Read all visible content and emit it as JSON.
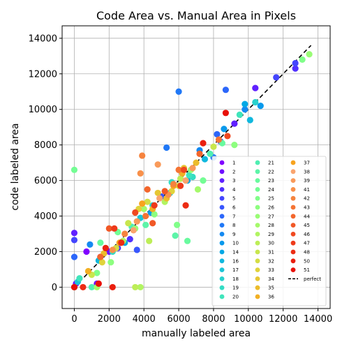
{
  "chart_data": {
    "type": "scatter",
    "title": "Code Area vs. Manual Area in Pixels",
    "xlabel": "manually labeled area",
    "ylabel": "code labeled area",
    "xlim": [
      -700,
      14700
    ],
    "ylim": [
      -1200,
      14700
    ],
    "xticks": [
      0,
      2000,
      4000,
      6000,
      8000,
      10000,
      12000,
      14000
    ],
    "yticks": [
      0,
      2000,
      4000,
      6000,
      8000,
      10000,
      12000,
      14000
    ],
    "grid": true,
    "legend_placement": "lower-right",
    "reference_line": {
      "name": "perfect",
      "x": [
        0,
        13600
      ],
      "y": [
        0,
        13600
      ],
      "style": "dashed",
      "color": "#000000"
    },
    "series": [
      {
        "name": "1",
        "color": "#8000ff",
        "points": [
          [
            0,
            0
          ],
          [
            700,
            2000
          ],
          [
            1500,
            1700
          ]
        ]
      },
      {
        "name": "2",
        "color": "#7010ff",
        "points": [
          [
            100,
            200
          ],
          [
            1300,
            200
          ],
          [
            2000,
            2000
          ]
        ]
      },
      {
        "name": "3",
        "color": "#6020ff",
        "points": [
          [
            0,
            3050
          ],
          [
            9200,
            9200
          ],
          [
            10400,
            11200
          ]
        ]
      },
      {
        "name": "4",
        "color": "#5030ff",
        "points": [
          [
            2500,
            2200
          ],
          [
            3200,
            2700
          ],
          [
            12700,
            12300
          ]
        ]
      },
      {
        "name": "5",
        "color": "#4445fe",
        "points": [
          [
            0,
            2650
          ],
          [
            12700,
            12600
          ],
          [
            11600,
            11800
          ]
        ]
      },
      {
        "name": "6",
        "color": "#3856fd",
        "points": [
          [
            3600,
            2100
          ],
          [
            5000,
            5100
          ],
          [
            8400,
            8200
          ]
        ]
      },
      {
        "name": "7",
        "color": "#2c67fa",
        "points": [
          [
            0,
            1700
          ],
          [
            8200,
            8600
          ],
          [
            8700,
            11100
          ]
        ]
      },
      {
        "name": "8",
        "color": "#2078f6",
        "points": [
          [
            6000,
            11000
          ],
          [
            5300,
            7850
          ],
          [
            8000,
            7300
          ]
        ]
      },
      {
        "name": "9",
        "color": "#1489f1",
        "points": [
          [
            900,
            2400
          ],
          [
            7200,
            7700
          ],
          [
            9800,
            10000
          ]
        ]
      },
      {
        "name": "10",
        "color": "#0899ec",
        "points": [
          [
            10700,
            10200
          ],
          [
            8600,
            8900
          ],
          [
            4400,
            4200
          ]
        ]
      },
      {
        "name": "14",
        "color": "#03a8e5",
        "points": [
          [
            9800,
            10300
          ],
          [
            2900,
            2500
          ],
          [
            6500,
            6000
          ]
        ]
      },
      {
        "name": "16",
        "color": "#10b8de",
        "points": [
          [
            10100,
            9400
          ],
          [
            1400,
            1500
          ],
          [
            7500,
            7200
          ]
        ]
      },
      {
        "name": "17",
        "color": "#1cc5d6",
        "points": [
          [
            200,
            300
          ],
          [
            3800,
            3900
          ],
          [
            5500,
            5300
          ]
        ]
      },
      {
        "name": "18",
        "color": "#28d1cd",
        "points": [
          [
            0,
            0
          ],
          [
            4500,
            4600
          ],
          [
            10400,
            10400
          ]
        ]
      },
      {
        "name": "19",
        "color": "#34dcc4",
        "points": [
          [
            5600,
            5900
          ],
          [
            2200,
            2000
          ],
          [
            6800,
            6200
          ]
        ]
      },
      {
        "name": "20",
        "color": "#40e5bb",
        "points": [
          [
            300,
            500
          ],
          [
            6600,
            6300
          ],
          [
            9500,
            9700
          ]
        ]
      },
      {
        "name": "21",
        "color": "#50eeb2",
        "points": [
          [
            1000,
            0
          ],
          [
            3300,
            3400
          ],
          [
            7800,
            7500
          ]
        ]
      },
      {
        "name": "22",
        "color": "#5cf4a8",
        "points": [
          [
            0,
            0
          ],
          [
            5800,
            2900
          ],
          [
            4100,
            3500
          ]
        ]
      },
      {
        "name": "23",
        "color": "#68fa9e",
        "points": [
          [
            1500,
            2500
          ],
          [
            6500,
            2600
          ],
          [
            8500,
            8100
          ]
        ]
      },
      {
        "name": "24",
        "color": "#74fd94",
        "points": [
          [
            0,
            6600
          ],
          [
            2500,
            3100
          ],
          [
            7400,
            6000
          ]
        ]
      },
      {
        "name": "25",
        "color": "#80fe89",
        "points": [
          [
            13100,
            12800
          ],
          [
            1300,
            800
          ],
          [
            5900,
            3500
          ]
        ]
      },
      {
        "name": "26",
        "color": "#8dfe7f",
        "points": [
          [
            9200,
            8000
          ],
          [
            2100,
            1400
          ],
          [
            4600,
            4100
          ]
        ]
      },
      {
        "name": "27",
        "color": "#99fc75",
        "points": [
          [
            13500,
            13100
          ],
          [
            3500,
            3300
          ],
          [
            6700,
            6600
          ]
        ]
      },
      {
        "name": "28",
        "color": "#a5f96b",
        "points": [
          [
            1300,
            0
          ],
          [
            4000,
            4400
          ],
          [
            7100,
            5500
          ]
        ]
      },
      {
        "name": "29",
        "color": "#b1f461",
        "points": [
          [
            3800,
            0
          ],
          [
            2800,
            2600
          ],
          [
            5200,
            4800
          ]
        ]
      },
      {
        "name": "30",
        "color": "#bdee57",
        "points": [
          [
            3500,
            0
          ],
          [
            4300,
            2600
          ],
          [
            6100,
            6100
          ]
        ]
      },
      {
        "name": "31",
        "color": "#c8e64d",
        "points": [
          [
            1000,
            700
          ],
          [
            3100,
            3600
          ],
          [
            8000,
            7900
          ]
        ]
      },
      {
        "name": "32",
        "color": "#d4dd44",
        "points": [
          [
            4200,
            4800
          ],
          [
            2400,
            2200
          ],
          [
            6000,
            5700
          ]
        ]
      },
      {
        "name": "33",
        "color": "#e0d33b",
        "points": [
          [
            3700,
            4400
          ],
          [
            1600,
            1400
          ],
          [
            5600,
            5400
          ]
        ]
      },
      {
        "name": "34",
        "color": "#e6c733",
        "points": [
          [
            0,
            0
          ],
          [
            6300,
            6700
          ],
          [
            4800,
            5300
          ]
        ]
      },
      {
        "name": "35",
        "color": "#ecbc2b",
        "points": [
          [
            1700,
            1900
          ],
          [
            5300,
            5000
          ],
          [
            7000,
            7000
          ]
        ]
      },
      {
        "name": "36",
        "color": "#f2b024",
        "points": [
          [
            800,
            900
          ],
          [
            4500,
            4400
          ],
          [
            6200,
            6400
          ]
        ]
      },
      {
        "name": "37",
        "color": "#f7a31e",
        "points": [
          [
            3900,
            4700
          ],
          [
            2600,
            2500
          ],
          [
            5700,
            5700
          ]
        ]
      },
      {
        "name": "38",
        "color": "#faa46e",
        "points": [
          [
            6400,
            6000
          ],
          [
            3400,
            3200
          ],
          [
            4900,
            5000
          ]
        ]
      },
      {
        "name": "39",
        "color": "#f99a5a",
        "points": [
          [
            4800,
            6900
          ],
          [
            3600,
            3700
          ],
          [
            6800,
            6700
          ]
        ]
      },
      {
        "name": "41",
        "color": "#f8904a",
        "points": [
          [
            3800,
            6400
          ],
          [
            2200,
            2100
          ],
          [
            5400,
            5200
          ]
        ]
      },
      {
        "name": "42",
        "color": "#f5833e",
        "points": [
          [
            3900,
            7400
          ],
          [
            5700,
            5800
          ],
          [
            2900,
            3000
          ]
        ]
      },
      {
        "name": "43",
        "color": "#f57434",
        "points": [
          [
            4100,
            4000
          ],
          [
            6000,
            6600
          ],
          [
            8300,
            8300
          ]
        ]
      },
      {
        "name": "44",
        "color": "#f3662c",
        "points": [
          [
            4200,
            5500
          ],
          [
            1500,
            1700
          ],
          [
            7200,
            7500
          ]
        ]
      },
      {
        "name": "45",
        "color": "#f15826",
        "points": [
          [
            2000,
            3300
          ],
          [
            5200,
            5400
          ],
          [
            4500,
            3600
          ]
        ]
      },
      {
        "name": "46",
        "color": "#f04820",
        "points": [
          [
            3500,
            4200
          ],
          [
            6300,
            6600
          ],
          [
            8800,
            8500
          ]
        ]
      },
      {
        "name": "47",
        "color": "#ee3a1a",
        "points": [
          [
            2300,
            3300
          ],
          [
            6100,
            5700
          ],
          [
            4600,
            4600
          ]
        ]
      },
      {
        "name": "48",
        "color": "#ec2c14",
        "points": [
          [
            500,
            0
          ],
          [
            2700,
            2500
          ],
          [
            6400,
            4600
          ]
        ]
      },
      {
        "name": "50",
        "color": "#ea1e0e",
        "points": [
          [
            2200,
            0
          ],
          [
            1800,
            2200
          ],
          [
            7400,
            8100
          ]
        ]
      },
      {
        "name": "51",
        "color": "#e81008",
        "points": [
          [
            0,
            0
          ],
          [
            1400,
            200
          ],
          [
            8700,
            9800
          ]
        ]
      }
    ]
  }
}
